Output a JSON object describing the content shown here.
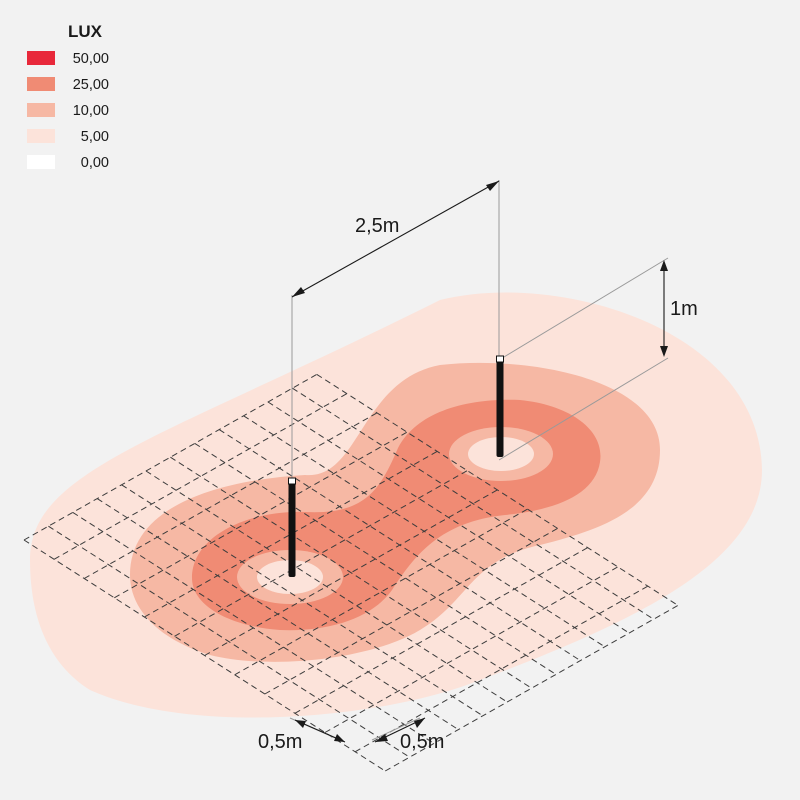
{
  "legend": {
    "title": "LUX",
    "items": [
      {
        "label": "50,00",
        "color": "#e8283a"
      },
      {
        "label": "25,00",
        "color": "#f08b74"
      },
      {
        "label": "10,00",
        "color": "#f6b8a4"
      },
      {
        "label": "5,00",
        "color": "#fce3da"
      },
      {
        "label": "0,00",
        "color": "#ffffff"
      }
    ]
  },
  "zones": {
    "outer_color": "#fce3da",
    "mid_color": "#f6b8a4",
    "inner_color": "#f08b74",
    "core_color": "#f6b8a4",
    "center_color": "#fce3da"
  },
  "dimensions": {
    "spacing": "2,5m",
    "height": "1m",
    "grid_left": "0,5m",
    "grid_right": "0,5m"
  },
  "lights": {
    "count": 2,
    "pole_color": "#111111"
  }
}
